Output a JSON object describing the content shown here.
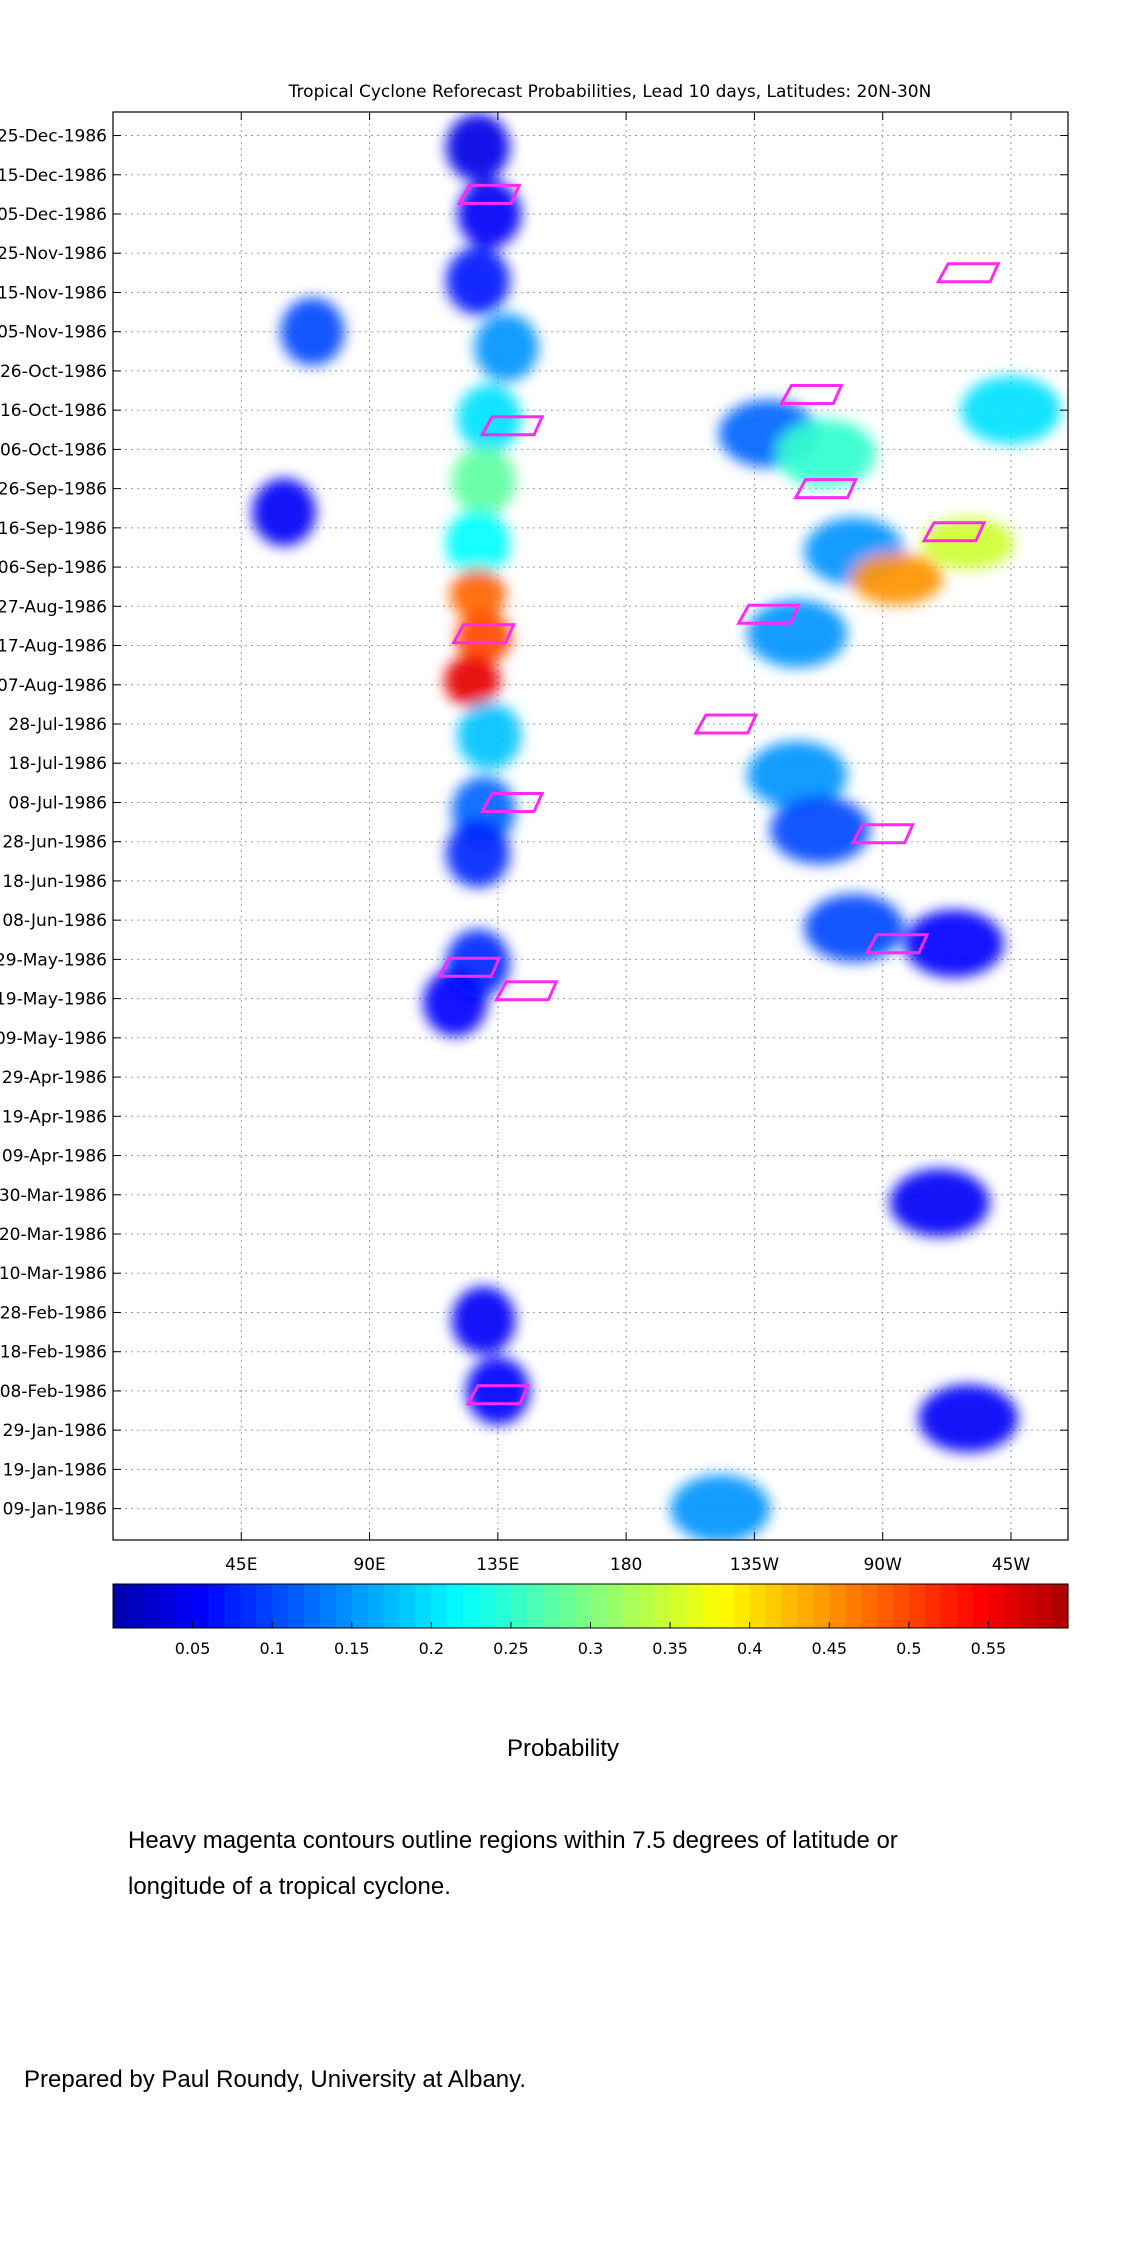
{
  "chart_data": {
    "type": "heatmap",
    "title": "Tropical Cyclone Reforecast Probabilities, Lead 10 days, Latitudes: 20N-30N",
    "x_tick_labels": [
      "45E",
      "90E",
      "135E",
      "180",
      "135W",
      "90W",
      "45W"
    ],
    "x_tick_values_deg_east": [
      45,
      90,
      135,
      180,
      225,
      270,
      315
    ],
    "xlim_deg_east": [
      0,
      335
    ],
    "y_tick_labels": [
      "25-Dec-1986",
      "15-Dec-1986",
      "05-Dec-1986",
      "25-Nov-1986",
      "15-Nov-1986",
      "05-Nov-1986",
      "26-Oct-1986",
      "16-Oct-1986",
      "06-Oct-1986",
      "26-Sep-1986",
      "16-Sep-1986",
      "06-Sep-1986",
      "27-Aug-1986",
      "17-Aug-1986",
      "07-Aug-1986",
      "28-Jul-1986",
      "18-Jul-1986",
      "08-Jul-1986",
      "28-Jun-1986",
      "18-Jun-1986",
      "08-Jun-1986",
      "29-May-1986",
      "19-May-1986",
      "09-May-1986",
      "29-Apr-1986",
      "19-Apr-1986",
      "09-Apr-1986",
      "30-Mar-1986",
      "20-Mar-1986",
      "10-Mar-1986",
      "28-Feb-1986",
      "18-Feb-1986",
      "08-Feb-1986",
      "29-Jan-1986",
      "19-Jan-1986",
      "09-Jan-1986"
    ],
    "ylim_dates": [
      "1986-01-01",
      "1986-12-31"
    ],
    "grid": true,
    "colorbar": {
      "label": "Probability",
      "ticks": [
        0.05,
        0.1,
        0.15,
        0.2,
        0.25,
        0.3,
        0.35,
        0.4,
        0.45,
        0.5,
        0.55
      ],
      "tick_labels": [
        "0.05",
        "0.1",
        "0.15",
        "0.2",
        "0.25",
        "0.3",
        "0.35",
        "0.4",
        "0.45",
        "0.5",
        "0.55"
      ],
      "range": [
        0,
        0.6
      ],
      "colormap": "jet"
    },
    "probability_regions": [
      {
        "lon": 128,
        "date": "1986-12-22",
        "p": 0.04
      },
      {
        "lon": 132,
        "date": "1986-12-05",
        "p": 0.05
      },
      {
        "lon": 128,
        "date": "1986-11-18",
        "p": 0.07
      },
      {
        "lon": 138,
        "date": "1986-11-01",
        "p": 0.15
      },
      {
        "lon": 132,
        "date": "1986-10-14",
        "p": 0.2
      },
      {
        "lon": 130,
        "date": "1986-09-28",
        "p": 0.28
      },
      {
        "lon": 128,
        "date": "1986-09-12",
        "p": 0.22
      },
      {
        "lon": 128,
        "date": "1986-08-30",
        "p": 0.48
      },
      {
        "lon": 130,
        "date": "1986-08-19",
        "p": 0.5
      },
      {
        "lon": 126,
        "date": "1986-08-08",
        "p": 0.56
      },
      {
        "lon": 132,
        "date": "1986-07-25",
        "p": 0.18
      },
      {
        "lon": 130,
        "date": "1986-07-06",
        "p": 0.12
      },
      {
        "lon": 128,
        "date": "1986-06-25",
        "p": 0.08
      },
      {
        "lon": 128,
        "date": "1986-05-28",
        "p": 0.08
      },
      {
        "lon": 120,
        "date": "1986-05-18",
        "p": 0.06
      },
      {
        "lon": 70,
        "date": "1986-11-05",
        "p": 0.1
      },
      {
        "lon": 60,
        "date": "1986-09-20",
        "p": 0.05
      },
      {
        "lon": 230,
        "date": "1986-10-10",
        "p": 0.12
      },
      {
        "lon": 250,
        "date": "1986-10-05",
        "p": 0.25
      },
      {
        "lon": 260,
        "date": "1986-09-10",
        "p": 0.15
      },
      {
        "lon": 275,
        "date": "1986-09-03",
        "p": 0.45
      },
      {
        "lon": 300,
        "date": "1986-09-12",
        "p": 0.35
      },
      {
        "lon": 315,
        "date": "1986-10-16",
        "p": 0.2
      },
      {
        "lon": 240,
        "date": "1986-08-20",
        "p": 0.15
      },
      {
        "lon": 240,
        "date": "1986-07-15",
        "p": 0.15
      },
      {
        "lon": 248,
        "date": "1986-07-01",
        "p": 0.1
      },
      {
        "lon": 260,
        "date": "1986-06-06",
        "p": 0.1
      },
      {
        "lon": 295,
        "date": "1986-06-02",
        "p": 0.06
      },
      {
        "lon": 290,
        "date": "1986-03-28",
        "p": 0.05
      },
      {
        "lon": 130,
        "date": "1986-02-26",
        "p": 0.05
      },
      {
        "lon": 135,
        "date": "1986-02-08",
        "p": 0.06
      },
      {
        "lon": 213,
        "date": "1986-01-09",
        "p": 0.15
      },
      {
        "lon": 300,
        "date": "1986-02-01",
        "p": 0.05
      }
    ],
    "tc_contours": [
      {
        "lon": 132,
        "date": "1986-12-10",
        "p": null
      },
      {
        "lon": 300,
        "date": "1986-11-20",
        "p": null
      },
      {
        "lon": 140,
        "date": "1986-10-12",
        "p": null
      },
      {
        "lon": 245,
        "date": "1986-10-20",
        "p": null
      },
      {
        "lon": 250,
        "date": "1986-09-26",
        "p": null
      },
      {
        "lon": 295,
        "date": "1986-09-15",
        "p": null
      },
      {
        "lon": 230,
        "date": "1986-08-25",
        "p": null
      },
      {
        "lon": 130,
        "date": "1986-08-20",
        "p": null
      },
      {
        "lon": 215,
        "date": "1986-07-28",
        "p": null
      },
      {
        "lon": 140,
        "date": "1986-07-08",
        "p": null
      },
      {
        "lon": 270,
        "date": "1986-06-30",
        "p": null
      },
      {
        "lon": 275,
        "date": "1986-06-02",
        "p": null
      },
      {
        "lon": 125,
        "date": "1986-05-27",
        "p": null
      },
      {
        "lon": 145,
        "date": "1986-05-21",
        "p": null
      },
      {
        "lon": 135,
        "date": "1986-02-07",
        "p": null
      }
    ]
  },
  "colorbar_label": "Probability",
  "note": "Heavy magenta contours outline regions within 7.5 degrees of latitude or longitude of a tropical cyclone.",
  "credit": "Prepared by Paul Roundy, University at Albany."
}
